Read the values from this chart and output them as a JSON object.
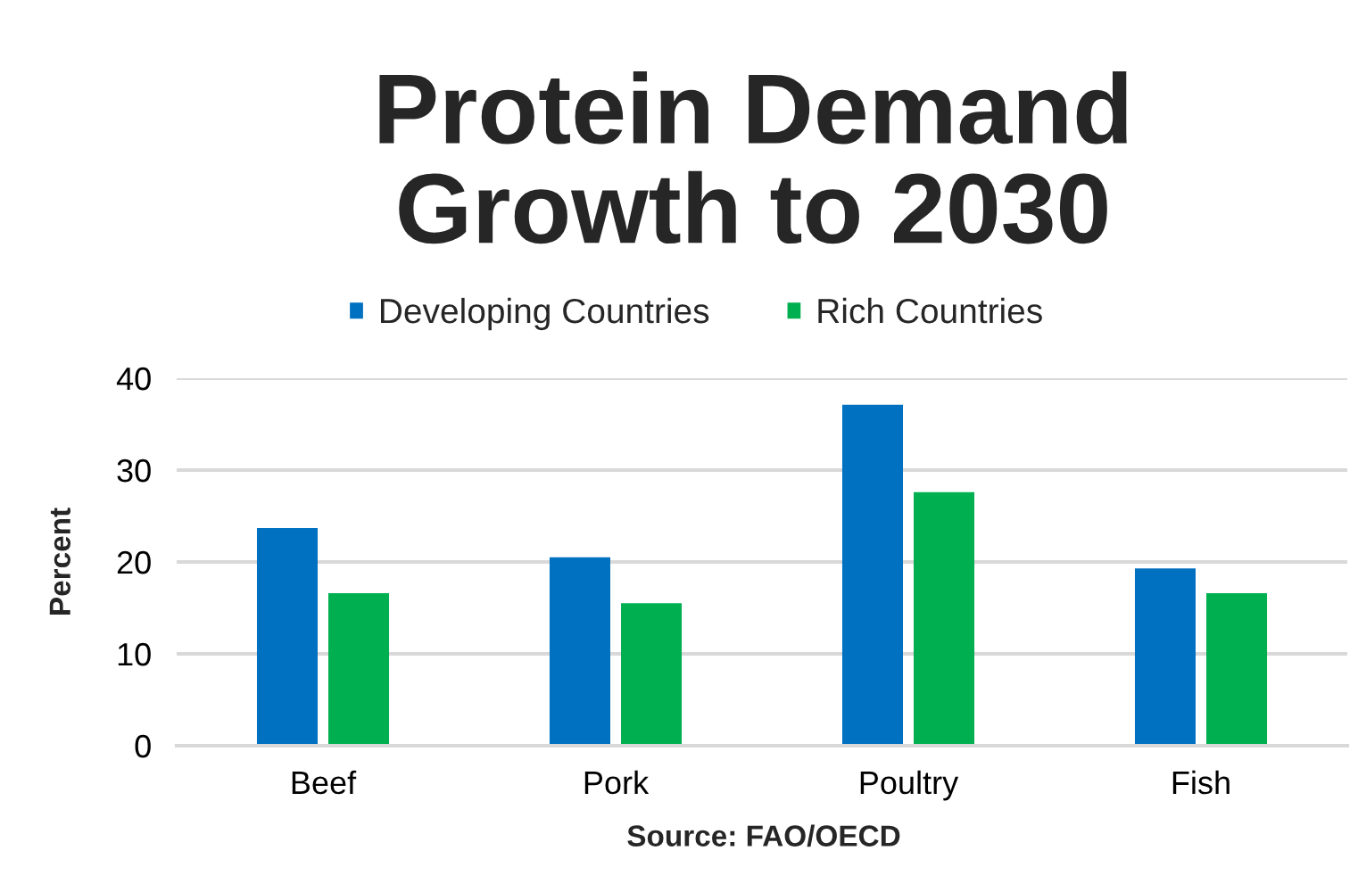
{
  "chart_data": {
    "type": "bar",
    "title": "Protein Demand\nGrowth to 2030",
    "categories": [
      "Beef",
      "Pork",
      "Poultry",
      "Fish"
    ],
    "series": [
      {
        "name": "Developing Countries",
        "color": "#0070c0",
        "values": [
          23.7,
          20.5,
          37.1,
          19.3
        ]
      },
      {
        "name": "Rich Countries",
        "color": "#00b050",
        "values": [
          16.6,
          15.5,
          27.6,
          16.6
        ]
      }
    ],
    "ylabel": "Percent",
    "annotations": [
      "Source: FAO/OECD"
    ],
    "ylim": [
      0,
      40
    ],
    "yticks": [
      0,
      10,
      20,
      30,
      40
    ],
    "grid": "y",
    "legend": "top"
  }
}
